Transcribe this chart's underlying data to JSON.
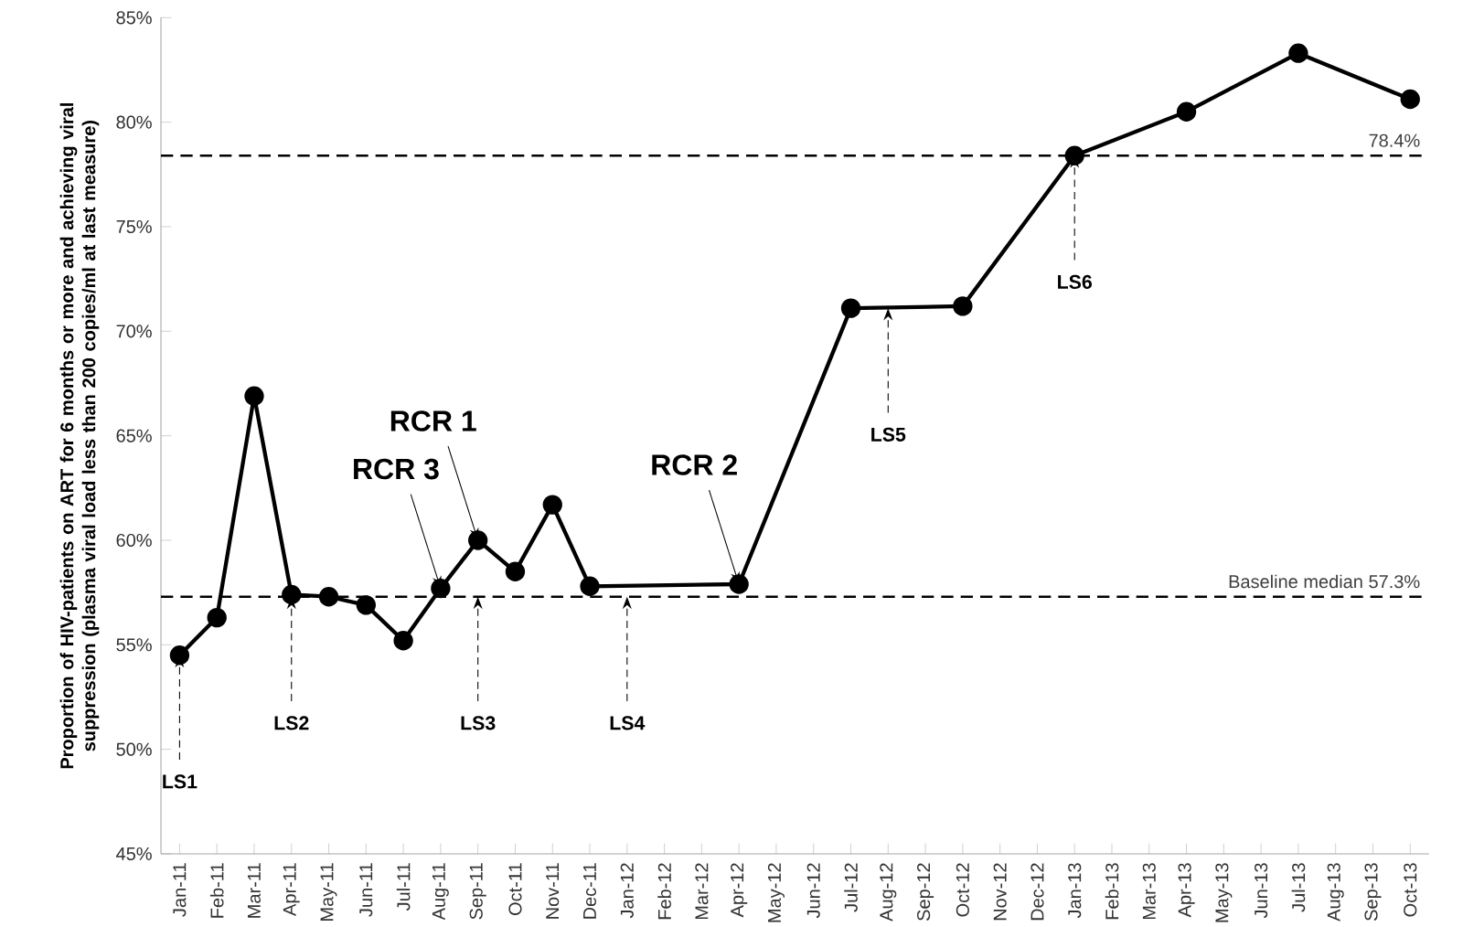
{
  "chart_data": {
    "type": "line",
    "ylabel": "Proportion of HIV-patients on ART for 6 months or more and achieving viral suppression (plasma viral load less than 200 copies/ml at last measure)",
    "categories": [
      "Jan-11",
      "Feb-11",
      "Mar-11",
      "Apr-11",
      "May-11",
      "Jun-11",
      "Jul-11",
      "Aug-11",
      "Sep-11",
      "Oct-11",
      "Nov-11",
      "Dec-11",
      "Jan-12",
      "Feb-12",
      "Mar-12",
      "Apr-12",
      "May-12",
      "Jun-12",
      "Jul-12",
      "Aug-12",
      "Sep-12",
      "Oct-12",
      "Nov-12",
      "Dec-12",
      "Jan-13",
      "Feb-13",
      "Mar-13",
      "Apr-13",
      "May-13",
      "Jun-13",
      "Jul-13",
      "Aug-13",
      "Sep-13",
      "Oct-13"
    ],
    "series": [
      {
        "color": "#000000",
        "values": [
          54.5,
          56.3,
          66.9,
          57.4,
          57.3,
          56.9,
          55.2,
          57.7,
          60.0,
          58.5,
          61.7,
          57.8,
          null,
          null,
          null,
          57.9,
          null,
          null,
          71.1,
          null,
          null,
          71.2,
          null,
          null,
          78.4,
          null,
          null,
          80.5,
          null,
          null,
          83.3,
          null,
          null,
          81.1
        ]
      }
    ],
    "marker": "circle",
    "line_style": "solid",
    "ylim": [
      45,
      85
    ],
    "yticks": [
      {
        "value": 45,
        "label": "45%"
      },
      {
        "value": 50,
        "label": "50%"
      },
      {
        "value": 55,
        "label": "55%"
      },
      {
        "value": 60,
        "label": "60%"
      },
      {
        "value": 65,
        "label": "65%"
      },
      {
        "value": 70,
        "label": "70%"
      },
      {
        "value": 75,
        "label": "75%"
      },
      {
        "value": 80,
        "label": "80%"
      },
      {
        "value": 85,
        "label": "85%"
      }
    ],
    "ref_lines": [
      {
        "axis": "y",
        "value": 57.3,
        "label": "Baseline median 57.3%",
        "color": "#000000",
        "line_style": "dashed"
      },
      {
        "axis": "y",
        "value": 78.4,
        "label": "78.4%",
        "color": "#000000",
        "line_style": "dashed"
      }
    ],
    "annotations": [
      {
        "text": "LS1",
        "x": "Jan-11",
        "y": 54.5
      },
      {
        "text": "LS2",
        "x": "Apr-11",
        "y": 57.3
      },
      {
        "text": "LS3",
        "x": "Sep-11",
        "y": 57.3
      },
      {
        "text": "LS4",
        "x": "Jan-12",
        "y": 57.3
      },
      {
        "text": "LS5",
        "x": "Aug-12",
        "y": 71.1
      },
      {
        "text": "LS6",
        "x": "Jan-13",
        "y": 78.4
      },
      {
        "text": "RCR 3",
        "x": "Aug-11",
        "y": 57.7
      },
      {
        "text": "RCR 1",
        "x": "Sep-11",
        "y": 60.0
      },
      {
        "text": "RCR 2",
        "x": "Apr-12",
        "y": 57.9
      }
    ],
    "grid": false
  }
}
